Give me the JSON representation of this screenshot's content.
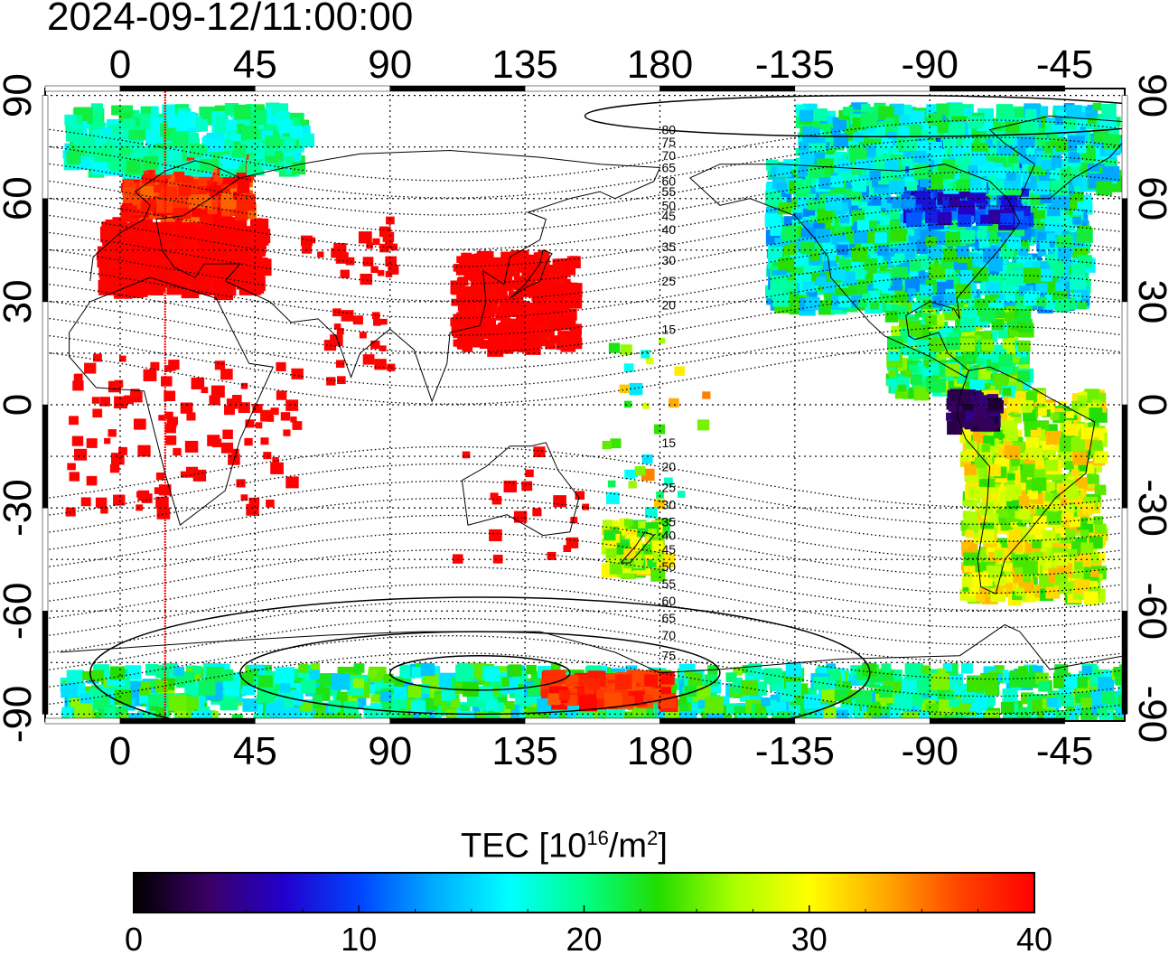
{
  "header": {
    "timestamp": "2024-09-12/11:00:00"
  },
  "map": {
    "projection": "equirectangular",
    "lon_range": [
      -25,
      335
    ],
    "lat_range": [
      -92,
      92
    ],
    "top_lon_tick_labels": [
      "0",
      "45",
      "90",
      "135",
      "180",
      "-135",
      "-90",
      "-45"
    ],
    "bottom_lon_tick_labels": [
      "0",
      "45",
      "90",
      "135",
      "180",
      "-135",
      "-90",
      "-45"
    ],
    "left_lat_tick_labels": [
      "90",
      "60",
      "30",
      "0",
      "-30",
      "-60",
      "-90"
    ],
    "right_lat_tick_labels": [
      "90",
      "60",
      "30",
      "0",
      "-30",
      "-60",
      "-90"
    ],
    "grid": "dotted, every 45 deg longitude and 15 deg latitude",
    "terminator_meridian_lon": 15,
    "terminator_color": "#ff0000",
    "contour_labels": [
      "80",
      "75",
      "70",
      "65",
      "60",
      "55",
      "50",
      "45",
      "40",
      "35",
      "30",
      "25",
      "20",
      "15",
      "15",
      "20",
      "25",
      "30",
      "35",
      "40",
      "45",
      "50",
      "55",
      "60",
      "65",
      "70",
      "75"
    ],
    "tec_regions": [
      {
        "name": "europe",
        "tec": 40
      },
      {
        "name": "east-asia",
        "tec": 40
      },
      {
        "name": "africa",
        "tec": 40
      },
      {
        "name": "india",
        "tec": 40
      },
      {
        "name": "north-america",
        "tec": 18
      },
      {
        "name": "south-america",
        "tec": 28
      },
      {
        "name": "amazon-low",
        "tec": 3
      },
      {
        "name": "antarctic",
        "tec": 20
      }
    ]
  },
  "colorbar": {
    "title": "TEC  [10",
    "title_exp1": "16",
    "title_mid": "/m",
    "title_exp2": "2",
    "title_end": "]",
    "min": 0,
    "max": 40,
    "tick_labels": [
      "0",
      "10",
      "20",
      "30",
      "40"
    ],
    "colors": [
      "#000000",
      "#3a0066",
      "#2200cc",
      "#0044ff",
      "#00aaff",
      "#00ffff",
      "#00ff88",
      "#22dd00",
      "#aaff00",
      "#ffff00",
      "#ffaa00",
      "#ff4400",
      "#ff0000"
    ]
  }
}
